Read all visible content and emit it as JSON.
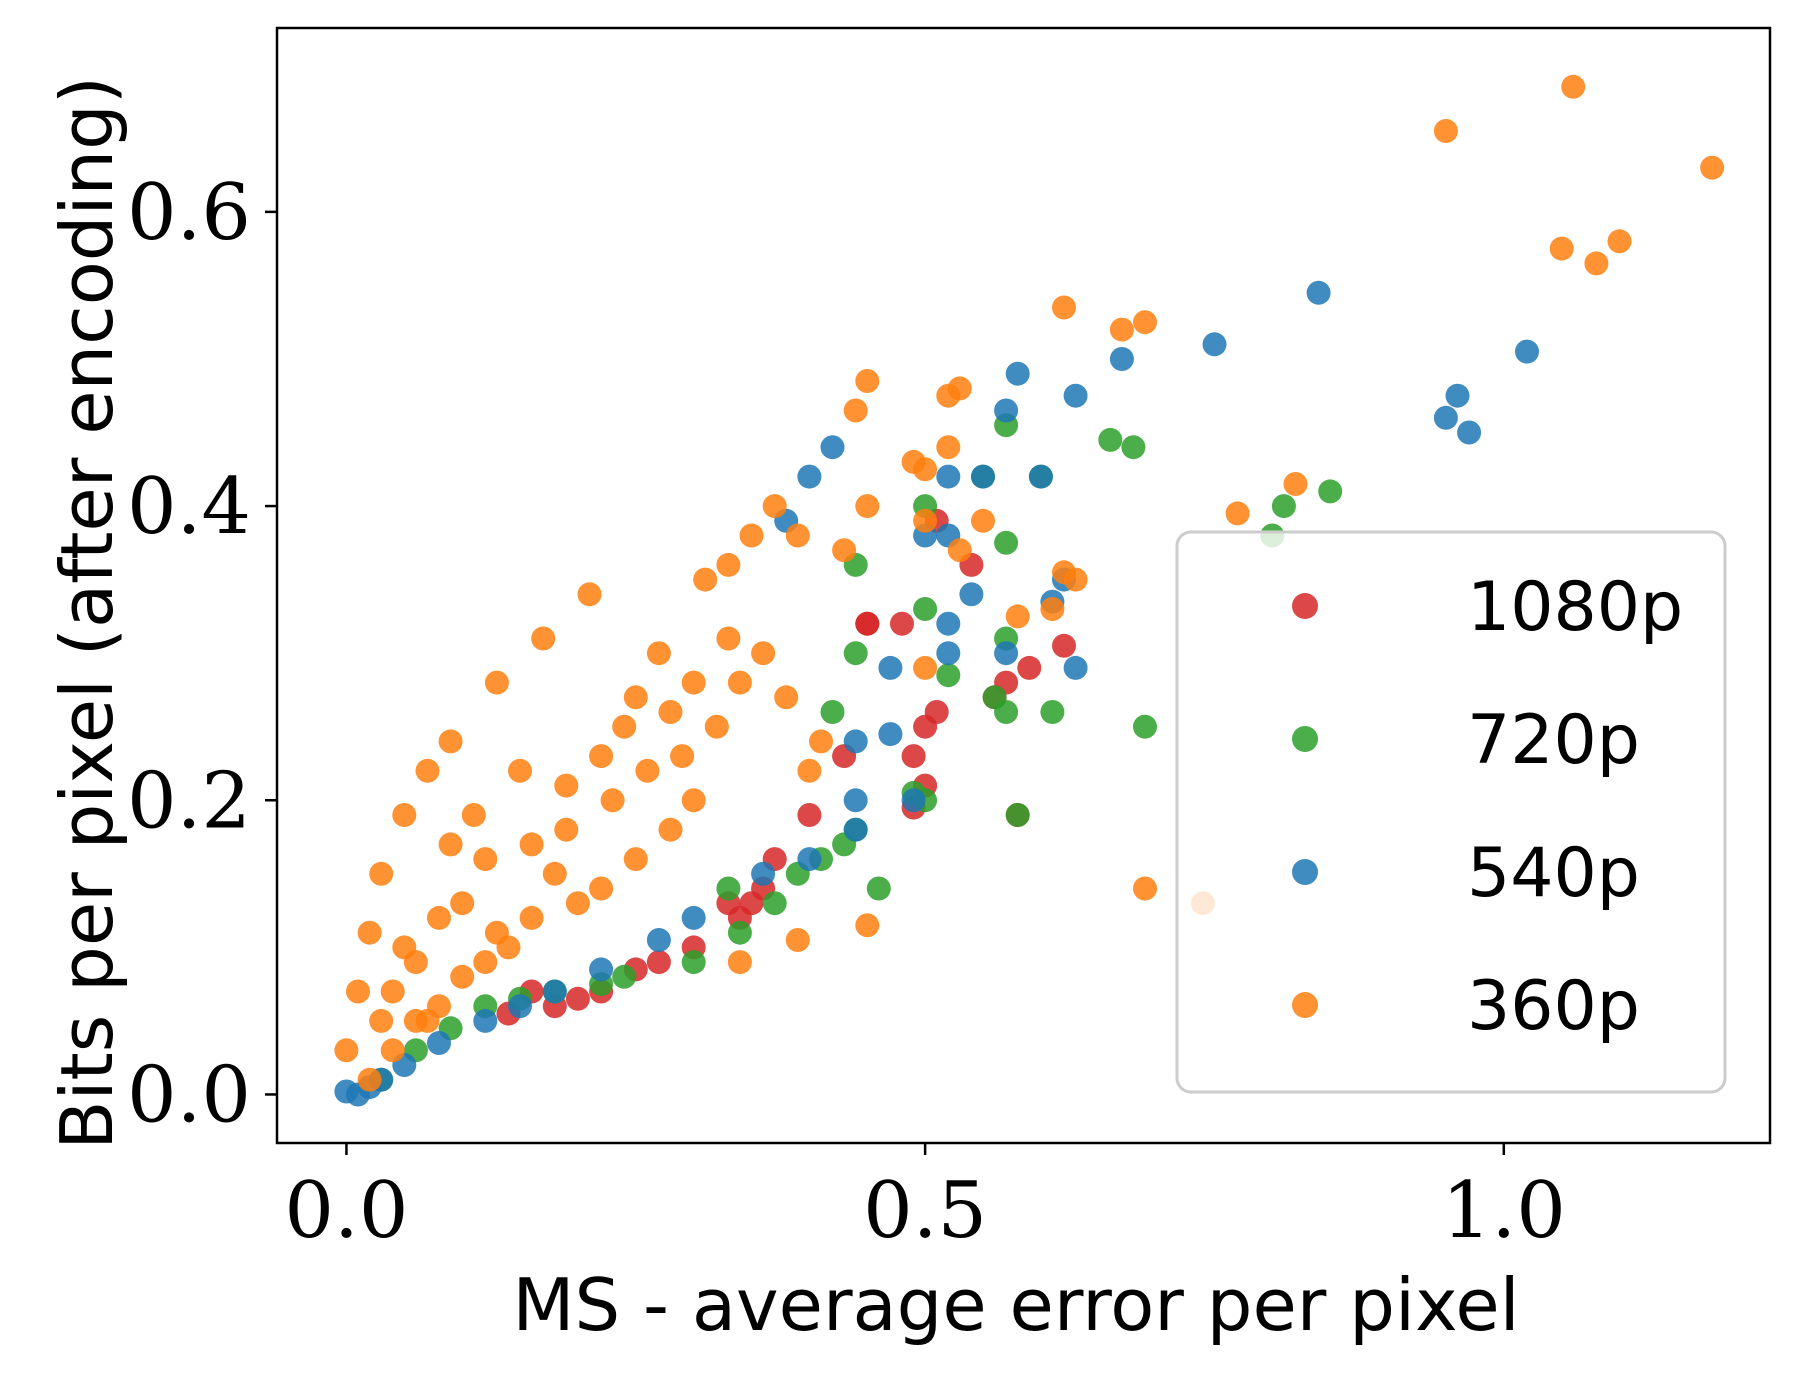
{
  "chart_data": {
    "type": "scatter",
    "title": "",
    "xlabel": "MS - average error per pixel",
    "ylabel": "Bits per pixel (after encoding)",
    "xlim": [
      -0.06,
      1.23
    ],
    "ylim": [
      -0.033,
      0.725
    ],
    "xticks": [
      0.0,
      0.5,
      1.0
    ],
    "xtick_labels": [
      "0.0",
      "0.5",
      "1.0"
    ],
    "yticks": [
      0.0,
      0.2,
      0.4,
      0.6
    ],
    "ytick_labels": [
      "0.0",
      "0.2",
      "0.4",
      "0.6"
    ],
    "grid": false,
    "legend_position": "lower-right",
    "series": [
      {
        "name": "1080p",
        "color": "#d62728",
        "points": [
          [
            0.51,
            0.39
          ],
          [
            0.54,
            0.36
          ],
          [
            0.45,
            0.32
          ],
          [
            0.48,
            0.32
          ],
          [
            0.59,
            0.29
          ],
          [
            0.62,
            0.305
          ],
          [
            0.5,
            0.25
          ],
          [
            0.51,
            0.26
          ],
          [
            0.49,
            0.23
          ],
          [
            0.5,
            0.21
          ],
          [
            0.49,
            0.195
          ],
          [
            0.58,
            0.19
          ],
          [
            0.45,
            0.32
          ],
          [
            0.35,
            0.13
          ],
          [
            0.36,
            0.14
          ],
          [
            0.33,
            0.13
          ],
          [
            0.3,
            0.1
          ],
          [
            0.22,
            0.07
          ],
          [
            0.18,
            0.06
          ],
          [
            0.16,
            0.07
          ],
          [
            0.14,
            0.055
          ],
          [
            0.56,
            0.27
          ],
          [
            0.57,
            0.28
          ],
          [
            0.43,
            0.23
          ],
          [
            0.4,
            0.19
          ],
          [
            0.37,
            0.16
          ],
          [
            0.34,
            0.12
          ],
          [
            0.27,
            0.09
          ],
          [
            0.25,
            0.085
          ],
          [
            0.2,
            0.065
          ]
        ]
      },
      {
        "name": "720p",
        "color": "#2ca02c",
        "points": [
          [
            0.57,
            0.455
          ],
          [
            0.66,
            0.445
          ],
          [
            0.68,
            0.44
          ],
          [
            0.6,
            0.42
          ],
          [
            0.55,
            0.42
          ],
          [
            0.5,
            0.4
          ],
          [
            0.57,
            0.375
          ],
          [
            0.44,
            0.36
          ],
          [
            0.5,
            0.33
          ],
          [
            0.57,
            0.31
          ],
          [
            0.52,
            0.285
          ],
          [
            0.56,
            0.27
          ],
          [
            0.57,
            0.26
          ],
          [
            0.61,
            0.26
          ],
          [
            0.69,
            0.25
          ],
          [
            0.58,
            0.19
          ],
          [
            0.49,
            0.205
          ],
          [
            0.5,
            0.2
          ],
          [
            0.46,
            0.14
          ],
          [
            0.41,
            0.16
          ],
          [
            0.43,
            0.17
          ],
          [
            0.37,
            0.13
          ],
          [
            0.34,
            0.11
          ],
          [
            0.3,
            0.09
          ],
          [
            0.24,
            0.08
          ],
          [
            0.8,
            0.38
          ],
          [
            0.81,
            0.4
          ],
          [
            0.85,
            0.41
          ],
          [
            0.44,
            0.3
          ],
          [
            0.42,
            0.26
          ],
          [
            0.44,
            0.18
          ],
          [
            0.39,
            0.15
          ],
          [
            0.33,
            0.14
          ],
          [
            0.22,
            0.075
          ],
          [
            0.18,
            0.07
          ],
          [
            0.15,
            0.065
          ],
          [
            0.12,
            0.06
          ],
          [
            0.09,
            0.045
          ],
          [
            0.06,
            0.03
          ],
          [
            0.03,
            0.01
          ]
        ]
      },
      {
        "name": "540p",
        "color": "#1f77b4",
        "points": [
          [
            0.84,
            0.545
          ],
          [
            0.75,
            0.51
          ],
          [
            1.02,
            0.505
          ],
          [
            0.67,
            0.5
          ],
          [
            0.58,
            0.49
          ],
          [
            0.63,
            0.475
          ],
          [
            0.95,
            0.46
          ],
          [
            0.96,
            0.475
          ],
          [
            0.97,
            0.45
          ],
          [
            0.57,
            0.465
          ],
          [
            0.42,
            0.44
          ],
          [
            0.4,
            0.42
          ],
          [
            0.52,
            0.42
          ],
          [
            0.55,
            0.42
          ],
          [
            0.6,
            0.42
          ],
          [
            0.38,
            0.39
          ],
          [
            0.5,
            0.38
          ],
          [
            0.52,
            0.38
          ],
          [
            0.54,
            0.34
          ],
          [
            0.61,
            0.335
          ],
          [
            0.62,
            0.35
          ],
          [
            0.52,
            0.32
          ],
          [
            0.52,
            0.3
          ],
          [
            0.47,
            0.29
          ],
          [
            0.57,
            0.3
          ],
          [
            0.63,
            0.29
          ],
          [
            0.44,
            0.24
          ],
          [
            0.47,
            0.245
          ],
          [
            0.44,
            0.2
          ],
          [
            0.49,
            0.2
          ],
          [
            0.44,
            0.18
          ],
          [
            0.4,
            0.16
          ],
          [
            0.36,
            0.15
          ],
          [
            0.3,
            0.12
          ],
          [
            0.27,
            0.105
          ],
          [
            0.22,
            0.085
          ],
          [
            0.18,
            0.07
          ],
          [
            0.15,
            0.06
          ],
          [
            0.12,
            0.05
          ],
          [
            0.08,
            0.035
          ],
          [
            0.05,
            0.02
          ],
          [
            0.02,
            0.005
          ],
          [
            0.0,
            0.002
          ],
          [
            0.01,
            0.0
          ],
          [
            0.03,
            0.01
          ]
        ]
      },
      {
        "name": "360p",
        "color": "#ff7f0e",
        "points": [
          [
            1.06,
            0.685
          ],
          [
            0.95,
            0.655
          ],
          [
            1.18,
            0.63
          ],
          [
            1.05,
            0.575
          ],
          [
            1.08,
            0.565
          ],
          [
            1.1,
            0.58
          ],
          [
            0.62,
            0.535
          ],
          [
            0.67,
            0.52
          ],
          [
            0.69,
            0.525
          ],
          [
            0.45,
            0.485
          ],
          [
            0.44,
            0.465
          ],
          [
            0.52,
            0.475
          ],
          [
            0.53,
            0.48
          ],
          [
            0.52,
            0.44
          ],
          [
            0.49,
            0.43
          ],
          [
            0.5,
            0.425
          ],
          [
            0.77,
            0.395
          ],
          [
            0.82,
            0.415
          ],
          [
            0.45,
            0.4
          ],
          [
            0.55,
            0.39
          ],
          [
            0.43,
            0.37
          ],
          [
            0.5,
            0.39
          ],
          [
            0.53,
            0.37
          ],
          [
            0.62,
            0.355
          ],
          [
            0.63,
            0.35
          ],
          [
            0.58,
            0.325
          ],
          [
            0.61,
            0.33
          ],
          [
            0.5,
            0.29
          ],
          [
            0.69,
            0.14
          ],
          [
            0.74,
            0.13
          ],
          [
            0.45,
            0.115
          ],
          [
            0.39,
            0.105
          ],
          [
            0.34,
            0.09
          ],
          [
            0.3,
            0.2
          ],
          [
            0.28,
            0.18
          ],
          [
            0.25,
            0.16
          ],
          [
            0.22,
            0.14
          ],
          [
            0.2,
            0.13
          ],
          [
            0.18,
            0.15
          ],
          [
            0.16,
            0.12
          ],
          [
            0.14,
            0.1
          ],
          [
            0.12,
            0.09
          ],
          [
            0.1,
            0.08
          ],
          [
            0.08,
            0.06
          ],
          [
            0.06,
            0.05
          ],
          [
            0.04,
            0.03
          ],
          [
            0.02,
            0.01
          ],
          [
            0.21,
            0.34
          ],
          [
            0.13,
            0.28
          ],
          [
            0.17,
            0.31
          ],
          [
            0.09,
            0.24
          ],
          [
            0.07,
            0.22
          ],
          [
            0.05,
            0.19
          ],
          [
            0.03,
            0.15
          ],
          [
            0.02,
            0.11
          ],
          [
            0.01,
            0.07
          ],
          [
            0.0,
            0.03
          ],
          [
            0.35,
            0.38
          ],
          [
            0.33,
            0.36
          ],
          [
            0.37,
            0.4
          ],
          [
            0.39,
            0.38
          ],
          [
            0.31,
            0.35
          ],
          [
            0.27,
            0.3
          ],
          [
            0.24,
            0.25
          ],
          [
            0.26,
            0.22
          ],
          [
            0.23,
            0.2
          ],
          [
            0.32,
            0.25
          ],
          [
            0.29,
            0.23
          ],
          [
            0.34,
            0.28
          ],
          [
            0.36,
            0.3
          ],
          [
            0.38,
            0.27
          ],
          [
            0.41,
            0.24
          ],
          [
            0.4,
            0.22
          ],
          [
            0.11,
            0.19
          ],
          [
            0.15,
            0.22
          ],
          [
            0.19,
            0.21
          ],
          [
            0.12,
            0.16
          ],
          [
            0.08,
            0.12
          ],
          [
            0.06,
            0.09
          ],
          [
            0.04,
            0.07
          ],
          [
            0.1,
            0.13
          ],
          [
            0.13,
            0.11
          ],
          [
            0.16,
            0.17
          ],
          [
            0.19,
            0.18
          ],
          [
            0.22,
            0.23
          ],
          [
            0.25,
            0.27
          ],
          [
            0.28,
            0.26
          ],
          [
            0.3,
            0.28
          ],
          [
            0.33,
            0.31
          ],
          [
            0.07,
            0.05
          ],
          [
            0.05,
            0.1
          ],
          [
            0.03,
            0.05
          ],
          [
            0.09,
            0.17
          ]
        ]
      }
    ]
  }
}
